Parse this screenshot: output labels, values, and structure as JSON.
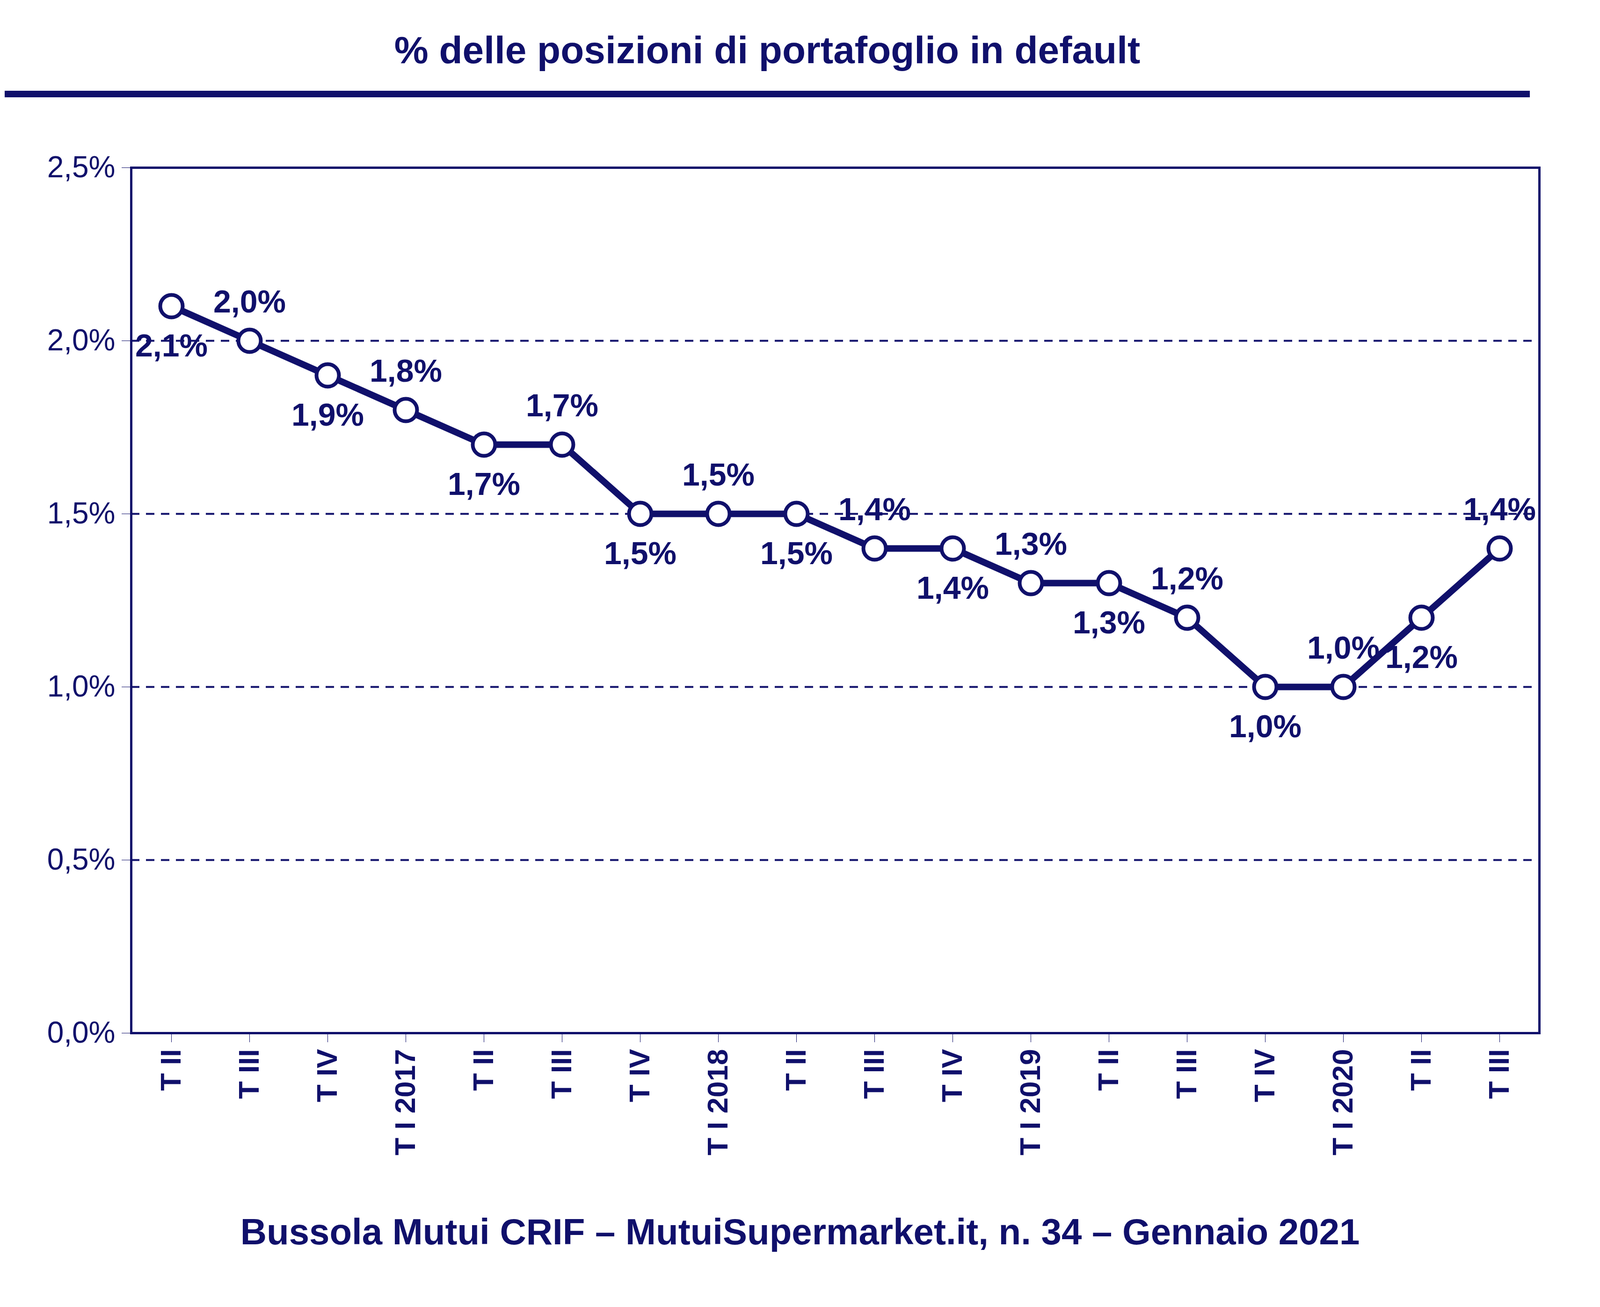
{
  "chart_data": {
    "type": "line",
    "title": "% delle posizioni di portafoglio in default",
    "caption": "Bussola Mutui CRIF – MutuiSupermarket.it, n. 34 – Gennaio 2021",
    "categories": [
      "T II",
      "T III",
      "T IV",
      "T I 2017",
      "T II",
      "T III",
      "T IV",
      "T I 2018",
      "T II",
      "T III",
      "T IV",
      "T I 2019",
      "T II",
      "T III",
      "T IV",
      "T I 2020",
      "T II",
      "T III"
    ],
    "values": [
      2.1,
      2.0,
      1.9,
      1.8,
      1.7,
      1.7,
      1.5,
      1.5,
      1.5,
      1.4,
      1.4,
      1.3,
      1.3,
      1.2,
      1.0,
      1.0,
      1.2,
      1.4
    ],
    "value_labels": [
      "2,1%",
      "2,0%",
      "1,9%",
      "1,8%",
      "1,7%",
      "1,7%",
      "1,5%",
      "1,5%",
      "1,5%",
      "1,4%",
      "1,4%",
      "1,3%",
      "1,3%",
      "1,2%",
      "1,0%",
      "1,0%",
      "1,2%",
      "1,4%"
    ],
    "color": "#10106b",
    "marker": "circle",
    "ylim": [
      0,
      2.5
    ],
    "yticks": [
      {
        "value": 0,
        "label": "0,0%"
      },
      {
        "value": 0.5,
        "label": "0,5%"
      },
      {
        "value": 1.0,
        "label": "1,0%"
      },
      {
        "value": 1.5,
        "label": "1,5%"
      },
      {
        "value": 2.0,
        "label": "2,0%"
      },
      {
        "value": 2.5,
        "label": "2,5%"
      }
    ],
    "grid": true,
    "data_labels": true
  }
}
